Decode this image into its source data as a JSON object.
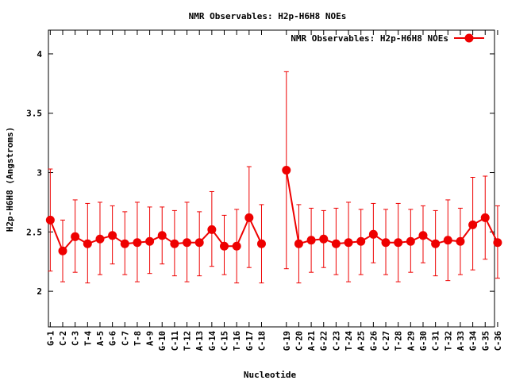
{
  "chart_data": {
    "type": "line",
    "title": "NMR Observables: H2p-H6H8 NOEs",
    "xlabel": "Nucleotide",
    "ylabel": "H2p-H6H8 (Angstroms)",
    "legend": {
      "label": "NMR Observables: H2p-H6H8 NOEs",
      "placement": "top-right"
    },
    "ylim": [
      1.7,
      4.2
    ],
    "yticks": [
      2,
      2.5,
      3,
      3.5,
      4
    ],
    "ytick_labels": [
      "2",
      "2.5",
      "3",
      "3.5",
      "4"
    ],
    "xlim": [
      0.85,
      36.75
    ],
    "grid": false,
    "series_color": "#ee0000",
    "categories": [
      "G-1",
      "C-2",
      "C-3",
      "T-4",
      "A-5",
      "G-6",
      "C-7",
      "T-8",
      "A-9",
      "G-10",
      "C-11",
      "T-12",
      "A-13",
      "G-14",
      "C-15",
      "T-16",
      "G-17",
      "C-18",
      "G-19",
      "C-20",
      "A-21",
      "G-22",
      "C-23",
      "T-24",
      "A-25",
      "G-26",
      "C-27",
      "T-28",
      "A-29",
      "G-30",
      "C-31",
      "T-32",
      "A-33",
      "G-34",
      "G-35",
      "C-36"
    ],
    "positions": [
      1,
      2,
      3,
      4,
      5,
      6,
      7,
      8,
      9,
      10,
      11,
      12,
      13,
      14,
      15,
      16,
      17,
      18,
      20,
      21,
      22,
      23,
      24,
      25,
      26,
      27,
      28,
      29,
      30,
      31,
      32,
      33,
      34,
      35,
      36,
      37
    ],
    "segments": [
      [
        0,
        17
      ],
      [
        18,
        35
      ]
    ],
    "series": [
      {
        "values": [
          2.6,
          2.34,
          2.46,
          2.4,
          2.44,
          2.47,
          2.4,
          2.41,
          2.42,
          2.47,
          2.4,
          2.41,
          2.41,
          2.52,
          2.38,
          2.38,
          2.62,
          2.4,
          3.02,
          2.4,
          2.43,
          2.44,
          2.4,
          2.41,
          2.42,
          2.48,
          2.41,
          2.41,
          2.42,
          2.47,
          2.4,
          2.43,
          2.42,
          2.56,
          2.62,
          2.41
        ],
        "err_low": [
          2.17,
          2.08,
          2.16,
          2.07,
          2.14,
          2.23,
          2.14,
          2.08,
          2.15,
          2.23,
          2.13,
          2.08,
          2.13,
          2.21,
          2.14,
          2.07,
          2.2,
          2.07,
          2.19,
          2.07,
          2.16,
          2.2,
          2.14,
          2.08,
          2.14,
          2.24,
          2.14,
          2.08,
          2.16,
          2.24,
          2.13,
          2.09,
          2.14,
          2.18,
          2.27,
          2.11
        ],
        "err_high": [
          3.03,
          2.6,
          2.77,
          2.74,
          2.75,
          2.72,
          2.67,
          2.75,
          2.71,
          2.71,
          2.68,
          2.75,
          2.67,
          2.84,
          2.64,
          2.69,
          3.05,
          2.73,
          3.85,
          2.73,
          2.7,
          2.68,
          2.7,
          2.75,
          2.69,
          2.74,
          2.69,
          2.74,
          2.69,
          2.72,
          2.68,
          2.77,
          2.7,
          2.96,
          2.97,
          2.72
        ]
      }
    ]
  }
}
